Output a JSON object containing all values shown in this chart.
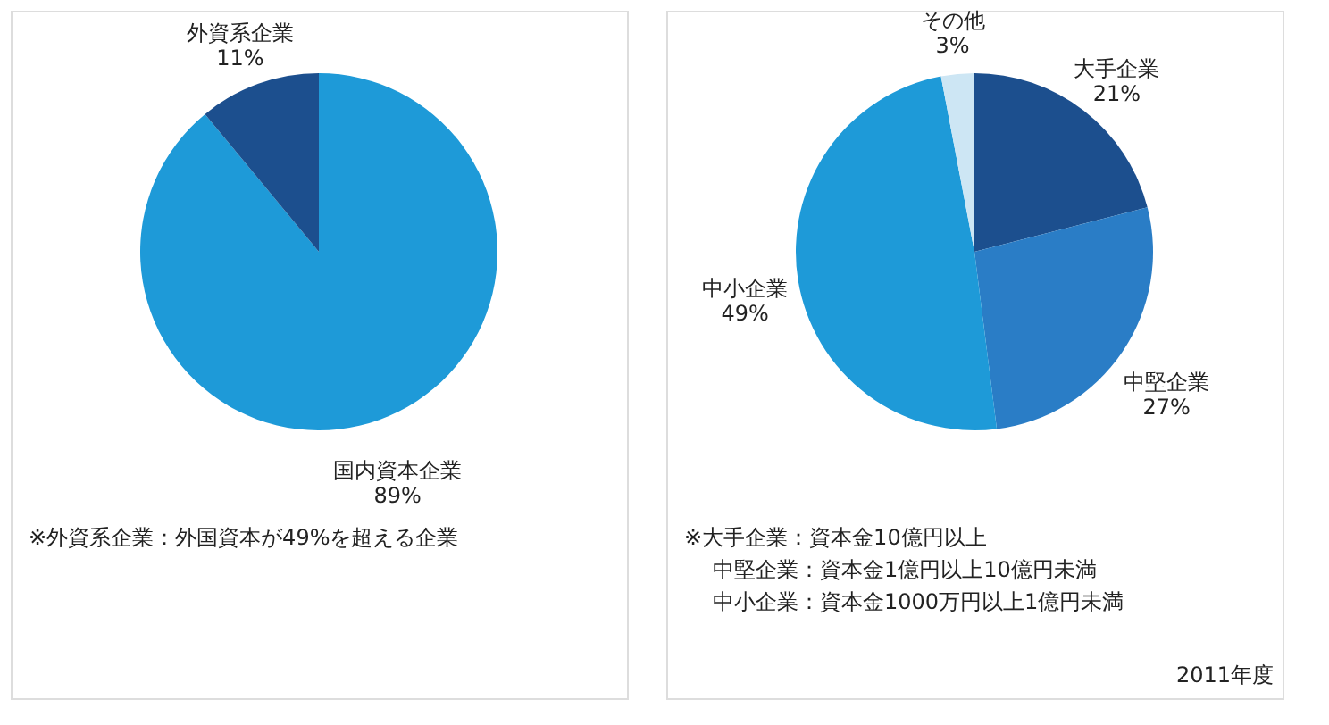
{
  "chart_data": [
    {
      "type": "pie",
      "categories": [
        "国内資本企業",
        "外資系企業"
      ],
      "values": [
        89,
        11
      ],
      "colors": [
        "#1e9ad8",
        "#1c4f8e"
      ],
      "value_labels": [
        "89%",
        "11%"
      ],
      "annotations": [
        "※外資系企業：外国資本が49%を超える企業"
      ]
    },
    {
      "type": "pie",
      "categories": [
        "大手企業",
        "中堅企業",
        "中小企業",
        "その他"
      ],
      "values": [
        21,
        27,
        49,
        3
      ],
      "colors": [
        "#1c4f8e",
        "#2a7dc6",
        "#1e9ad8",
        "#cde6f4"
      ],
      "value_labels": [
        "21%",
        "27%",
        "49%",
        "3%"
      ],
      "annotations": [
        "※大手企業：資本金10億円以上",
        "中堅企業：資本金1億円以上10億円未満",
        "中小企業：資本金1000万円以上1億円未満",
        "2011年度"
      ]
    }
  ]
}
